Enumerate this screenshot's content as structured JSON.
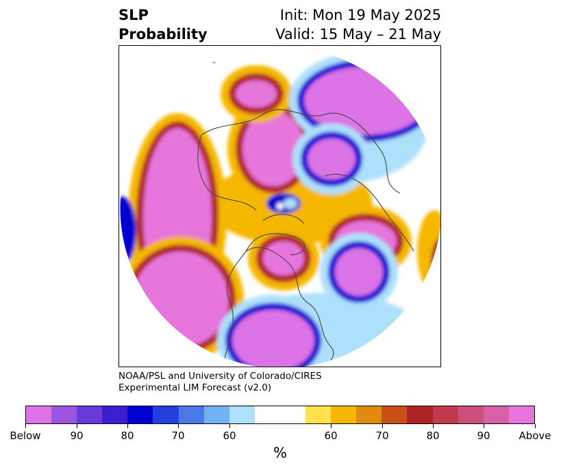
{
  "title": {
    "left_line1": "SLP",
    "left_line2": "Probability",
    "right_line1": "Init: Mon 19 May 2025",
    "right_line2": "Valid: 15 May – 21 May"
  },
  "credit": {
    "line1": "NOAA/PSL and University of Colorado/CIRES",
    "line2": "Experimental LIM Forecast (v2.0)"
  },
  "colorbar": {
    "unit": "%",
    "colors": [
      "#dc73e6",
      "#9b55e0",
      "#6a3ad8",
      "#3a1fd0",
      "#0000d2",
      "#233fdc",
      "#4c78e6",
      "#72b2f2",
      "#ade0fb",
      "#ffffff",
      "#ffe14d",
      "#f5b700",
      "#e08a10",
      "#c85018",
      "#b02324",
      "#c23a4e",
      "#cc4e7d",
      "#d860a8",
      "#e676dc"
    ],
    "ticks": [
      {
        "label": "Below"
      },
      {
        "label": "90"
      },
      {
        "label": "80"
      },
      {
        "label": "70"
      },
      {
        "label": "60"
      },
      {
        "label": "60"
      },
      {
        "label": "70"
      },
      {
        "label": "80"
      },
      {
        "label": "90"
      },
      {
        "label": "Above"
      }
    ]
  },
  "map": {
    "projection": "north-polar-stereographic",
    "variable": "SLP probability",
    "palette": {
      "strong_below": "#dc73e6",
      "below": "#0000d2",
      "weak_below": "#ade0fb",
      "neutral": "#ffffff",
      "weak_above": "#f5b700",
      "above": "#b02324",
      "strong_above": "#e676dc",
      "coastline": "#444444"
    }
  }
}
